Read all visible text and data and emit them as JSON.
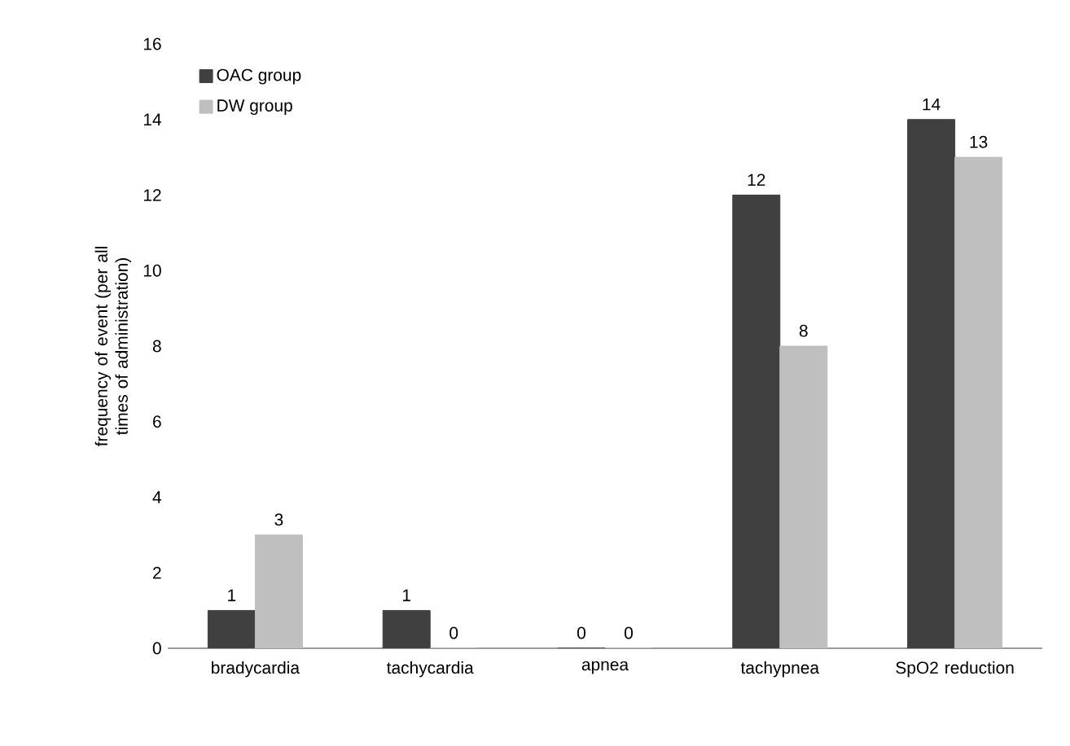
{
  "chart_data": {
    "type": "bar",
    "ylabel": "frequency of event (per all times of administration)",
    "categories": [
      "bradycardia",
      "tachycardia",
      "apnea",
      "tachypnea",
      "SpO2 reduction"
    ],
    "series": [
      {
        "name": "OAC group",
        "color": "#404040",
        "values": [
          1,
          1,
          0,
          12,
          14
        ]
      },
      {
        "name": "DW group",
        "color": "#bfbfbf",
        "values": [
          3,
          0,
          0,
          8,
          13
        ]
      }
    ],
    "ylim": [
      0,
      16
    ],
    "yticks": [
      0,
      2,
      4,
      6,
      8,
      10,
      12,
      14,
      16
    ],
    "data_labels": true,
    "legend": "top left",
    "grid": false
  }
}
